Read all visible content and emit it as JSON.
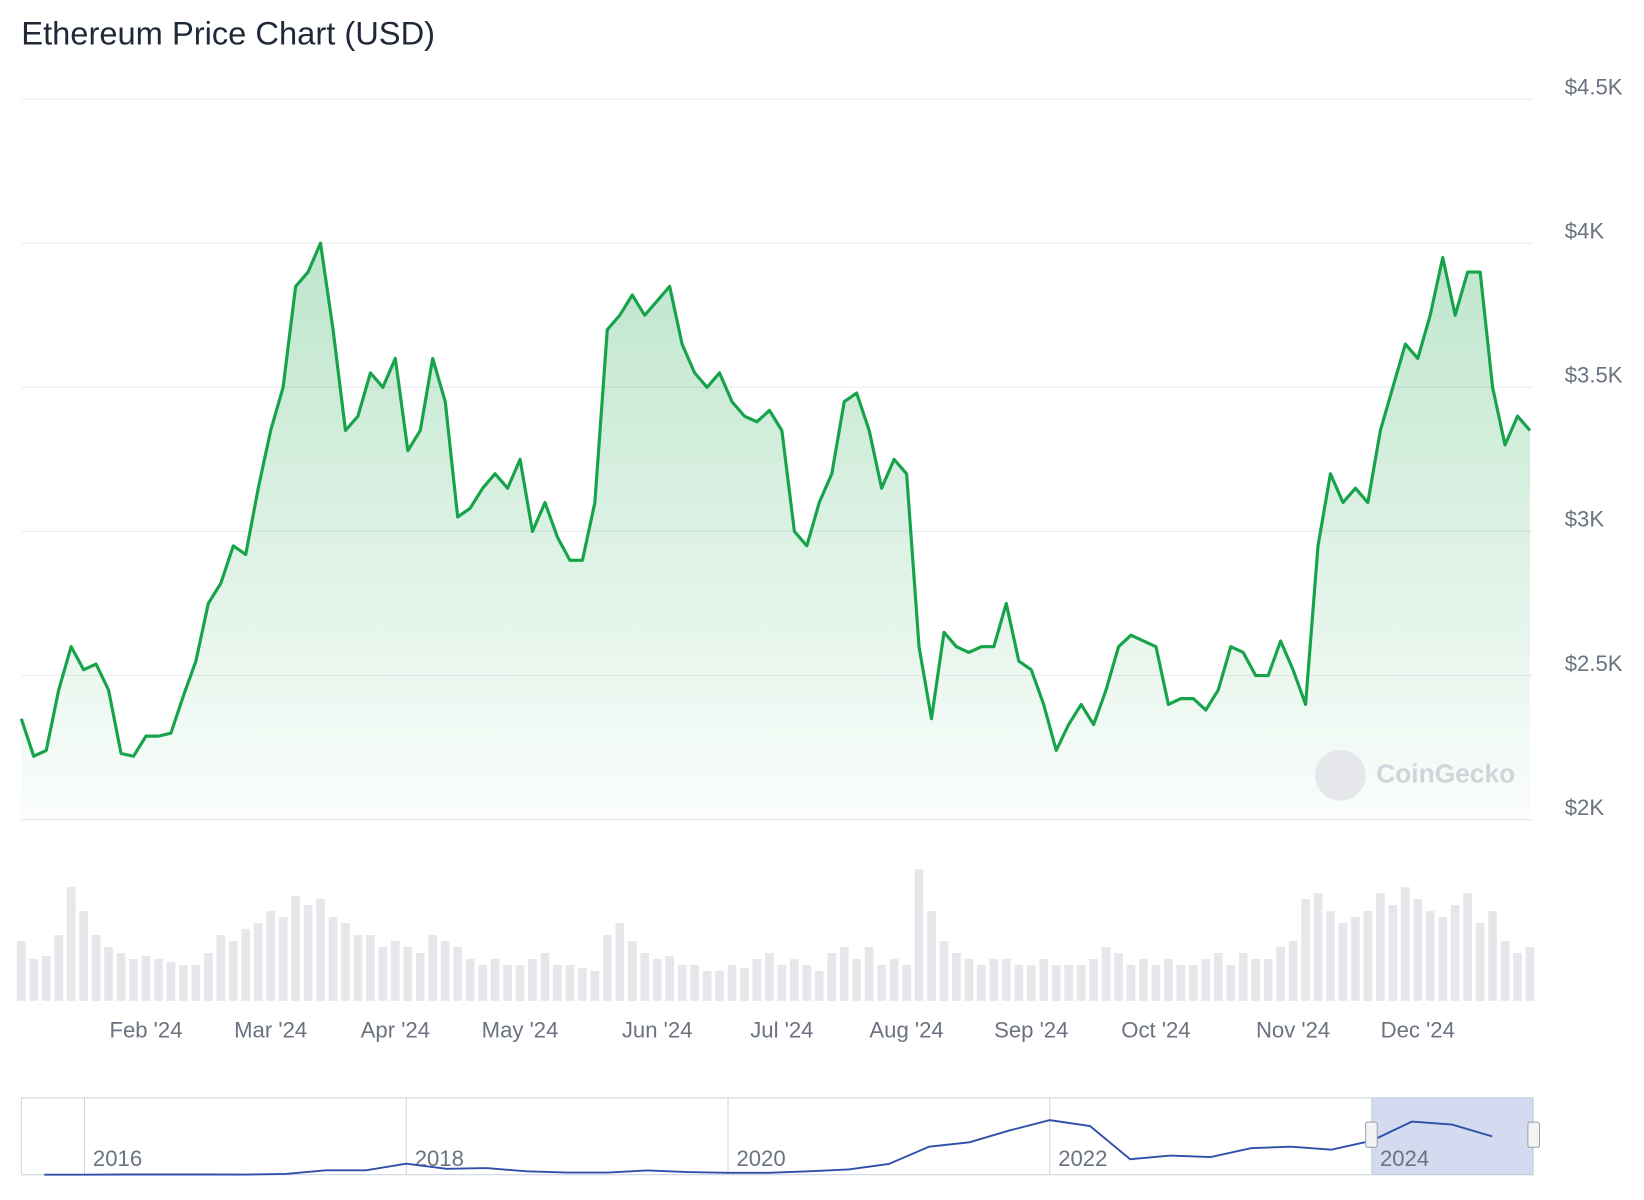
{
  "chart_data": [
    {
      "type": "area",
      "title": "Ethereum Price Chart (USD)",
      "color": "#16a34a",
      "grid": true,
      "watermark": "CoinGecko",
      "ylim": [
        2000,
        4500
      ],
      "yticks": [
        {
          "value": 2000,
          "label": "$2K"
        },
        {
          "value": 2500,
          "label": "$2.5K"
        },
        {
          "value": 3000,
          "label": "$3K"
        },
        {
          "value": 3500,
          "label": "$3.5K"
        },
        {
          "value": 4000,
          "label": "$4K"
        },
        {
          "value": 4500,
          "label": "$4.5K"
        }
      ],
      "categories": [
        null,
        null,
        null,
        null,
        null,
        null,
        null,
        null,
        null,
        null,
        "Feb '24",
        null,
        null,
        null,
        null,
        null,
        null,
        null,
        null,
        null,
        "Mar '24",
        null,
        null,
        null,
        null,
        null,
        null,
        null,
        null,
        null,
        "Apr '24",
        null,
        null,
        null,
        null,
        null,
        null,
        null,
        null,
        null,
        "May '24",
        null,
        null,
        null,
        null,
        null,
        null,
        null,
        null,
        null,
        null,
        "Jun '24",
        null,
        null,
        null,
        null,
        null,
        null,
        null,
        null,
        null,
        "Jul '24",
        null,
        null,
        null,
        null,
        null,
        null,
        null,
        null,
        null,
        "Aug '24",
        null,
        null,
        null,
        null,
        null,
        null,
        null,
        null,
        null,
        "Sep '24",
        null,
        null,
        null,
        null,
        null,
        null,
        null,
        null,
        null,
        "Oct '24",
        null,
        null,
        null,
        null,
        null,
        null,
        null,
        null,
        null,
        null,
        "Nov '24",
        null,
        null,
        null,
        null,
        null,
        null,
        null,
        null,
        null,
        "Dec '24",
        null,
        null,
        null,
        null,
        null,
        null,
        null,
        null,
        null
      ],
      "values": [
        2350,
        2220,
        2240,
        2450,
        2600,
        2520,
        2540,
        2450,
        2230,
        2220,
        2290,
        2290,
        2300,
        2430,
        2550,
        2750,
        2820,
        2950,
        2920,
        3150,
        3350,
        3500,
        3850,
        3900,
        4000,
        3700,
        3350,
        3400,
        3550,
        3500,
        3600,
        3280,
        3350,
        3600,
        3450,
        3050,
        3080,
        3150,
        3200,
        3150,
        3250,
        3000,
        3100,
        2980,
        2900,
        2900,
        3100,
        3700,
        3750,
        3820,
        3750,
        3800,
        3850,
        3650,
        3550,
        3500,
        3550,
        3450,
        3400,
        3380,
        3420,
        3350,
        3000,
        2950,
        3100,
        3200,
        3450,
        3480,
        3350,
        3150,
        3250,
        3200,
        2600,
        2350,
        2650,
        2600,
        2580,
        2600,
        2600,
        2750,
        2550,
        2520,
        2400,
        2240,
        2330,
        2400,
        2330,
        2450,
        2600,
        2640,
        2620,
        2600,
        2400,
        2420,
        2420,
        2380,
        2450,
        2600,
        2580,
        2500,
        2500,
        2620,
        2520,
        2400,
        2950,
        3200,
        3100,
        3150,
        3100,
        3350,
        3500,
        3650,
        3600,
        3750,
        3950,
        3750,
        3900,
        3900,
        3500,
        3300,
        3400,
        3350
      ],
      "volume_color": "#e5e7eb",
      "volume": [
        20,
        14,
        15,
        22,
        38,
        30,
        22,
        18,
        16,
        14,
        15,
        14,
        13,
        12,
        12,
        16,
        22,
        20,
        24,
        26,
        30,
        28,
        35,
        32,
        34,
        28,
        26,
        22,
        22,
        18,
        20,
        18,
        16,
        22,
        20,
        18,
        14,
        12,
        14,
        12,
        12,
        14,
        16,
        12,
        12,
        11,
        10,
        22,
        26,
        20,
        16,
        14,
        15,
        12,
        12,
        10,
        10,
        12,
        11,
        14,
        16,
        12,
        14,
        12,
        10,
        16,
        18,
        14,
        18,
        12,
        14,
        12,
        44,
        30,
        20,
        16,
        14,
        12,
        14,
        14,
        12,
        12,
        14,
        12,
        12,
        12,
        14,
        18,
        16,
        12,
        14,
        12,
        14,
        12,
        12,
        14,
        16,
        12,
        16,
        14,
        14,
        18,
        20,
        34,
        36,
        30,
        26,
        28,
        30,
        36,
        32,
        38,
        34,
        30,
        28,
        32,
        36,
        26,
        30,
        20,
        16,
        18
      ]
    },
    {
      "type": "line",
      "color": "#2f4fa8",
      "ylim": [
        0,
        5000
      ],
      "categories": [
        null,
        "2016",
        null,
        null,
        null,
        null,
        null,
        null,
        null,
        "2018",
        null,
        null,
        null,
        null,
        null,
        null,
        null,
        "2020",
        null,
        null,
        null,
        null,
        null,
        null,
        null,
        "2022",
        null,
        null,
        null,
        null,
        null,
        null,
        null,
        "2024",
        null,
        null,
        null
      ],
      "values": [
        0.7,
        1,
        11,
        12,
        13,
        8,
        50,
        300,
        300,
        750,
        400,
        450,
        230,
        140,
        140,
        290,
        180,
        130,
        130,
        230,
        360,
        730,
        1900,
        2200,
        3000,
        3700,
        3300,
        1050,
        1300,
        1200,
        1800,
        1900,
        1700,
        2300,
        3600,
        3400,
        2600
      ]
    }
  ]
}
